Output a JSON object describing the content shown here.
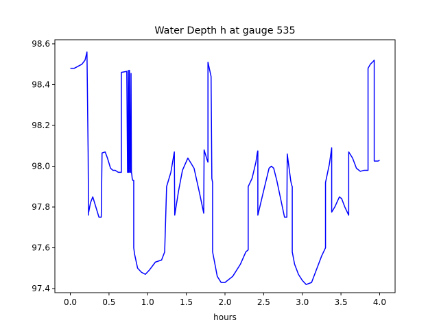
{
  "chart_data": {
    "type": "line",
    "title": "Water Depth h at gauge 535",
    "xlabel": "hours",
    "ylabel": "",
    "xlim": [
      -0.2,
      4.2
    ],
    "ylim": [
      97.38,
      98.62
    ],
    "xticks": [
      0.0,
      0.5,
      1.0,
      1.5,
      2.0,
      2.5,
      3.0,
      3.5,
      4.0
    ],
    "xtick_labels": [
      "0.0",
      "0.5",
      "1.0",
      "1.5",
      "2.0",
      "2.5",
      "3.0",
      "3.5",
      "4.0"
    ],
    "yticks": [
      97.4,
      97.6,
      97.8,
      98.0,
      98.2,
      98.4,
      98.6
    ],
    "ytick_labels": [
      "97.4",
      "97.6",
      "97.8",
      "98.0",
      "98.2",
      "98.4",
      "98.6"
    ],
    "grid": false,
    "legend": "none",
    "series": [
      {
        "color": "#0000ff",
        "x": [
          0.0,
          0.05,
          0.1,
          0.15,
          0.19,
          0.215,
          0.23,
          0.23,
          0.235,
          0.235,
          0.26,
          0.29,
          0.33,
          0.37,
          0.4,
          0.41,
          0.41,
          0.45,
          0.48,
          0.52,
          0.55,
          0.58,
          0.62,
          0.66,
          0.66,
          0.73,
          0.74,
          0.745,
          0.75,
          0.755,
          0.76,
          0.765,
          0.775,
          0.78,
          0.785,
          0.79,
          0.795,
          0.8,
          0.81,
          0.82,
          0.82,
          0.83,
          0.87,
          0.92,
          0.97,
          1.02,
          1.1,
          1.18,
          1.22,
          1.245,
          1.245,
          1.3,
          1.345,
          1.345,
          1.35,
          1.4,
          1.45,
          1.52,
          1.6,
          1.67,
          1.725,
          1.73,
          1.77,
          1.78,
          1.78,
          1.82,
          1.83,
          1.84,
          1.84,
          1.87,
          1.9,
          1.95,
          2.0,
          2.1,
          2.2,
          2.27,
          2.3,
          2.3,
          2.35,
          2.4,
          2.42,
          2.425,
          2.425,
          2.5,
          2.57,
          2.6,
          2.63,
          2.67,
          2.72,
          2.77,
          2.8,
          2.805,
          2.805,
          2.85,
          2.86,
          2.87,
          2.87,
          2.9,
          2.95,
          3.0,
          3.05,
          3.12,
          3.19,
          3.25,
          3.3,
          3.3,
          3.35,
          3.38,
          3.38,
          3.42,
          3.48,
          3.51,
          3.55,
          3.6,
          3.6,
          3.65,
          3.7,
          3.75,
          3.8,
          3.85,
          3.85,
          3.88,
          3.92,
          3.93,
          3.93,
          3.98,
          4.0
        ],
        "y": [
          98.48,
          98.48,
          98.49,
          98.5,
          98.52,
          98.56,
          98.07,
          98.08,
          97.76,
          97.77,
          97.82,
          97.85,
          97.8,
          97.75,
          97.75,
          98.06,
          98.065,
          98.07,
          98.04,
          97.99,
          97.98,
          97.98,
          97.97,
          97.97,
          98.46,
          98.465,
          97.97,
          97.97,
          98.47,
          97.97,
          97.97,
          98.47,
          97.97,
          97.97,
          98.455,
          97.97,
          97.96,
          97.94,
          97.93,
          97.93,
          97.6,
          97.57,
          97.5,
          97.48,
          97.47,
          97.49,
          97.53,
          97.54,
          97.58,
          97.9,
          97.9,
          97.97,
          98.07,
          98.07,
          97.76,
          97.88,
          97.98,
          98.04,
          97.99,
          97.87,
          97.77,
          98.08,
          98.03,
          98.02,
          98.51,
          98.44,
          97.94,
          97.92,
          97.58,
          97.52,
          97.46,
          97.43,
          97.43,
          97.46,
          97.52,
          97.58,
          97.59,
          97.9,
          97.94,
          98.02,
          98.07,
          98.075,
          97.76,
          97.88,
          97.99,
          98.0,
          97.99,
          97.93,
          97.84,
          97.75,
          97.75,
          98.06,
          98.06,
          97.93,
          97.91,
          97.9,
          97.58,
          97.52,
          97.47,
          97.44,
          97.42,
          97.43,
          97.5,
          97.56,
          97.6,
          97.92,
          98.01,
          98.09,
          97.775,
          97.8,
          97.85,
          97.84,
          97.8,
          97.76,
          98.07,
          98.04,
          97.99,
          97.975,
          97.98,
          97.98,
          98.48,
          98.5,
          98.515,
          98.52,
          98.025,
          98.025,
          98.03
        ]
      }
    ]
  }
}
